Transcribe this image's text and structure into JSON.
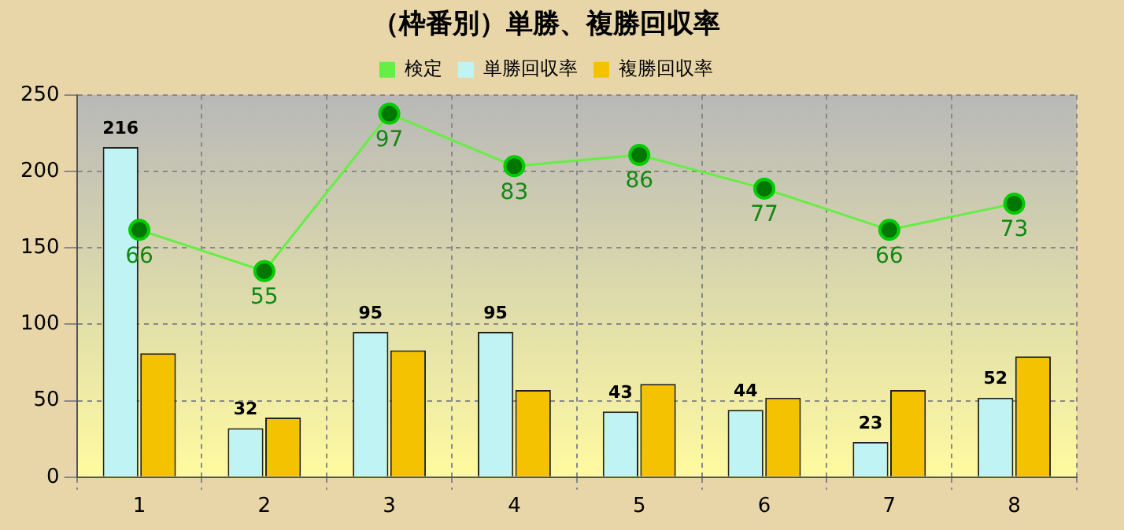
{
  "chart_data": {
    "type": "bar",
    "title": "（枠番別）単勝、複勝回収率",
    "categories": [
      "1",
      "2",
      "3",
      "4",
      "5",
      "6",
      "7",
      "8"
    ],
    "series": [
      {
        "name": "単勝回収率",
        "color": "#c0f4f4",
        "values": [
          216,
          32,
          95,
          95,
          43,
          44,
          23,
          52
        ],
        "value_labels": [
          "216",
          "32",
          "95",
          "95",
          "43",
          "44",
          "23",
          "52"
        ]
      },
      {
        "name": "複勝回収率",
        "color": "#f5c200",
        "values": [
          81,
          39,
          83,
          57,
          61,
          52,
          57,
          79
        ]
      },
      {
        "name": "検定",
        "type": "line",
        "axis": "y2",
        "color": "#66ee44",
        "values": [
          66,
          55,
          97,
          83,
          86,
          77,
          66,
          73
        ],
        "value_labels": [
          "66",
          "55",
          "97",
          "83",
          "86",
          "77",
          "66",
          "73"
        ]
      }
    ],
    "ylim": [
      0,
      250
    ],
    "yticks": [
      0,
      50,
      100,
      150,
      200,
      250
    ],
    "y2lim": [
      0,
      102
    ],
    "grid": true,
    "legend": "top",
    "marker": "circle",
    "line_style": "solid"
  }
}
